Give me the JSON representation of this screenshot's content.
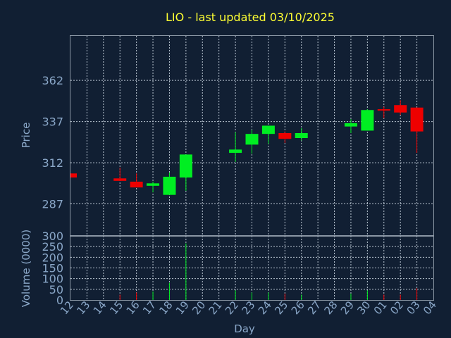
{
  "colors": {
    "background": "#111f33",
    "title": "#ffff33",
    "axis_text": "#8aa7c8",
    "up": "#00ee22",
    "down": "#ee0000",
    "grid": "#b8c4d0"
  },
  "chart_data": {
    "type": "candlestick",
    "title": "LIO - last updated 03/10/2025",
    "xlabel": "Day",
    "price_ylabel": "Price",
    "volume_ylabel": "Volume (0000)",
    "price_ylim": [
      268,
      389
    ],
    "price_ticks": [
      "287",
      "312",
      "337",
      "362"
    ],
    "volume_ylim": [
      0,
      300
    ],
    "volume_ticks": [
      "0",
      "50",
      "100",
      "150",
      "200",
      "250",
      "300"
    ],
    "days": [
      "12",
      "13",
      "14",
      "15",
      "16",
      "17",
      "18",
      "19",
      "20",
      "21",
      "22",
      "23",
      "24",
      "25",
      "26",
      "27",
      "28",
      "29",
      "30",
      "01",
      "02",
      "03",
      "04"
    ],
    "grid": true,
    "candles": [
      {
        "day": "12",
        "open": 305.5,
        "close": 303.0,
        "high": 305.5,
        "low": 303.0,
        "volume": 0
      },
      {
        "day": "15",
        "open": 302.5,
        "close": 301.0,
        "high": 309.0,
        "low": 301.0,
        "volume": 25
      },
      {
        "day": "16",
        "open": 300.5,
        "close": 297.0,
        "high": 305.5,
        "low": 297.0,
        "volume": 35
      },
      {
        "day": "17",
        "open": 298.0,
        "close": 299.5,
        "high": 300.5,
        "low": 294.0,
        "volume": 40
      },
      {
        "day": "18",
        "open": 292.5,
        "close": 303.5,
        "high": 306.0,
        "low": 292.5,
        "volume": 80
      },
      {
        "day": "19",
        "open": 303.0,
        "close": 317.0,
        "high": 317.0,
        "low": 295.0,
        "volume": 265
      },
      {
        "day": "22",
        "open": 318.0,
        "close": 320.0,
        "high": 330.5,
        "low": 312.5,
        "volume": 45
      },
      {
        "day": "23",
        "open": 323.0,
        "close": 329.5,
        "high": 332.0,
        "low": 317.5,
        "volume": 35
      },
      {
        "day": "24",
        "open": 329.5,
        "close": 334.5,
        "high": 334.5,
        "low": 323.5,
        "volume": 35
      },
      {
        "day": "25",
        "open": 330.0,
        "close": 326.5,
        "high": 331.0,
        "low": 324.0,
        "volume": 30
      },
      {
        "day": "26",
        "open": 327.0,
        "close": 330.0,
        "high": 333.0,
        "low": 325.5,
        "volume": 25
      },
      {
        "day": "29",
        "open": 334.0,
        "close": 336.0,
        "high": 338.5,
        "low": 330.0,
        "volume": 30
      },
      {
        "day": "30",
        "open": 331.5,
        "close": 344.0,
        "high": 344.5,
        "low": 331.5,
        "volume": 45
      },
      {
        "day": "01",
        "open": 344.5,
        "close": 344.0,
        "high": 346.0,
        "low": 339.0,
        "volume": 25
      },
      {
        "day": "02",
        "open": 347.0,
        "close": 342.5,
        "high": 350.0,
        "low": 341.0,
        "volume": 25
      },
      {
        "day": "03",
        "open": 345.5,
        "close": 331.0,
        "high": 345.5,
        "low": 318.0,
        "volume": 55
      }
    ]
  }
}
